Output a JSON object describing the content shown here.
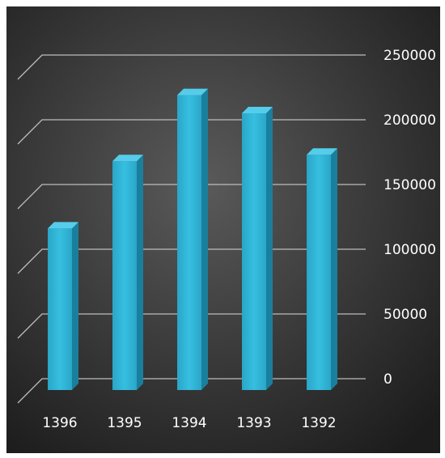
{
  "chart_data": {
    "type": "bar",
    "categories": [
      "1396",
      "1395",
      "1394",
      "1393",
      "1392"
    ],
    "values": [
      116000,
      168000,
      219000,
      205000,
      173000
    ],
    "title": "",
    "xlabel": "",
    "ylabel": "",
    "ylim": [
      0,
      250000
    ],
    "yticks": [
      "0",
      "50000",
      "100000",
      "150000",
      "200000",
      "250000"
    ],
    "grid": true,
    "legend": "none",
    "style": "3d-column",
    "colors": {
      "bar_front": "#2fb4d6",
      "bar_side": "#1a7f9c",
      "bar_top": "#55cdea",
      "background_center": "#5a5a5a",
      "background_edge": "#1c1c1c",
      "gridline": "#bdbdbd",
      "text": "#ffffff"
    }
  }
}
